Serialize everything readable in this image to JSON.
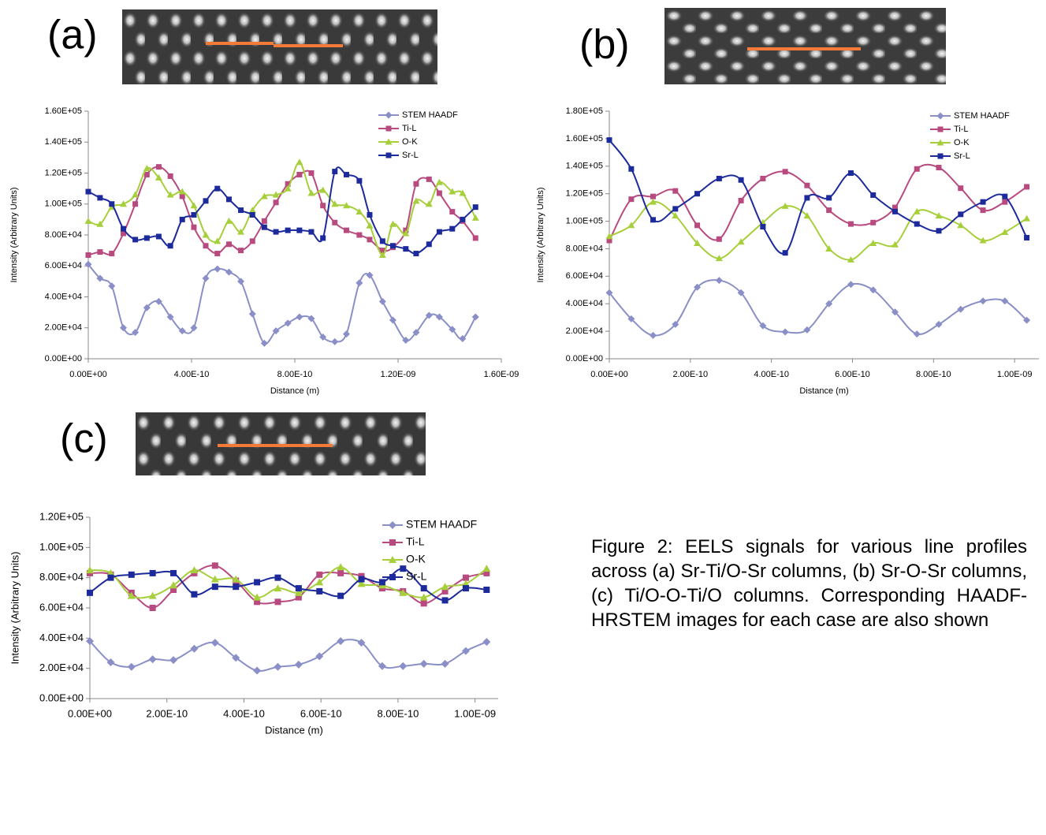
{
  "chart_data": [
    {
      "type": "line",
      "label": "(a)",
      "xlabel": "Distance (m)",
      "ylabel": "Intensity (Arbitrary Units)",
      "xlim": [
        0,
        1.6e-09
      ],
      "ylim": [
        0,
        160000
      ],
      "xticks": [
        {
          "value": 0,
          "label": "0.00E+00"
        },
        {
          "value": 4e-10,
          "label": "4.00E-10"
        },
        {
          "value": 8e-10,
          "label": "8.00E-10"
        },
        {
          "value": 1.2e-09,
          "label": "1.20E-09"
        },
        {
          "value": 1.6e-09,
          "label": "1.60E-09"
        }
      ],
      "yticks": [
        {
          "value": 0,
          "label": "0.00E+00"
        },
        {
          "value": 20000,
          "label": "2.00E+04"
        },
        {
          "value": 40000,
          "label": "4.00E+04"
        },
        {
          "value": 60000,
          "label": "6.00E+04"
        },
        {
          "value": 80000,
          "label": "8.00E+04"
        },
        {
          "value": 100000,
          "label": "1.00E+05"
        },
        {
          "value": 120000,
          "label": "1.20E+05"
        },
        {
          "value": 140000,
          "label": "1.40E+05"
        },
        {
          "value": 160000,
          "label": "1.60E+05"
        }
      ],
      "x": [
        0,
        4.55e-11,
        9.09e-11,
        1.36e-10,
        1.82e-10,
        2.27e-10,
        2.73e-10,
        3.18e-10,
        3.64e-10,
        4.09e-10,
        4.55e-10,
        5e-10,
        5.45e-10,
        5.91e-10,
        6.36e-10,
        6.82e-10,
        7.27e-10,
        7.73e-10,
        8.18e-10,
        8.64e-10,
        9.09e-10,
        9.55e-10,
        1e-09,
        1.05e-09,
        1.09e-09,
        1.14e-09,
        1.18e-09,
        1.23e-09,
        1.27e-09,
        1.32e-09,
        1.36e-09,
        1.41e-09,
        1.45e-09,
        1.5e-09
      ],
      "series": [
        {
          "name": "STEM HAADF",
          "color": "#8a8fc8",
          "marker": "diamond",
          "values": [
            61000,
            52000,
            47000,
            20000,
            17000,
            33000,
            37000,
            27000,
            18000,
            20000,
            52000,
            58000,
            56000,
            50000,
            29000,
            10000,
            18000,
            23000,
            27000,
            26000,
            14000,
            11000,
            16000,
            49000,
            54000,
            37000,
            25000,
            12000,
            17000,
            28000,
            27000,
            19000,
            13000,
            27000
          ]
        },
        {
          "name": "Ti-L",
          "color": "#b84a7f",
          "marker": "square",
          "values": [
            67000,
            69000,
            68000,
            81000,
            100000,
            119000,
            124000,
            118000,
            105000,
            85000,
            73000,
            68000,
            74000,
            70000,
            76000,
            89000,
            101000,
            113000,
            119000,
            120000,
            99000,
            88000,
            83000,
            80000,
            77000,
            70000,
            72000,
            83000,
            113000,
            116000,
            107000,
            95000,
            89000,
            78000
          ]
        },
        {
          "name": "O-K",
          "color": "#a6cf3b",
          "marker": "triangle",
          "values": [
            89000,
            87000,
            98000,
            100000,
            106000,
            123000,
            117000,
            106000,
            108000,
            99000,
            80000,
            76000,
            89000,
            82000,
            96000,
            105000,
            106000,
            110000,
            127000,
            107000,
            109000,
            100000,
            99000,
            95000,
            86000,
            67000,
            87000,
            81000,
            102000,
            100000,
            114000,
            108000,
            107000,
            91000
          ]
        },
        {
          "name": "Sr-L",
          "color": "#1c2a9c",
          "marker": "square",
          "values": [
            108000,
            104000,
            100000,
            84000,
            77000,
            78000,
            79000,
            73000,
            90000,
            93000,
            102000,
            110000,
            103000,
            96000,
            93000,
            85000,
            82000,
            83000,
            83000,
            82000,
            78000,
            121000,
            119000,
            115000,
            93000,
            76000,
            73000,
            71000,
            68000,
            74000,
            82000,
            84000,
            90000,
            98000
          ]
        }
      ]
    },
    {
      "type": "line",
      "label": "(b)",
      "xlabel": "Distance (m)",
      "ylabel": "Intensity (Arbitrary Units)",
      "xlim": [
        0,
        1.06e-09
      ],
      "ylim": [
        0,
        180000
      ],
      "xticks": [
        {
          "value": 0,
          "label": "0.00E+00"
        },
        {
          "value": 2e-10,
          "label": "2.00E-10"
        },
        {
          "value": 4e-10,
          "label": "4.00E-10"
        },
        {
          "value": 6e-10,
          "label": "6.00E-10"
        },
        {
          "value": 8e-10,
          "label": "8.00E-10"
        },
        {
          "value": 1e-09,
          "label": "1.00E-09"
        }
      ],
      "yticks": [
        {
          "value": 0,
          "label": "0.00E+00"
        },
        {
          "value": 20000,
          "label": "2.00E+04"
        },
        {
          "value": 40000,
          "label": "4.00E+04"
        },
        {
          "value": 60000,
          "label": "6.00E+04"
        },
        {
          "value": 80000,
          "label": "8.00E+04"
        },
        {
          "value": 100000,
          "label": "1.00E+05"
        },
        {
          "value": 120000,
          "label": "1.20E+05"
        },
        {
          "value": 140000,
          "label": "1.40E+05"
        },
        {
          "value": 160000,
          "label": "1.60E+05"
        },
        {
          "value": 180000,
          "label": "1.80E+05"
        }
      ],
      "x": [
        0,
        5.42e-11,
        1.08e-10,
        1.63e-10,
        2.17e-10,
        2.71e-10,
        3.25e-10,
        3.79e-10,
        4.34e-10,
        4.88e-10,
        5.42e-10,
        5.96e-10,
        6.51e-10,
        7.05e-10,
        7.59e-10,
        8.13e-10,
        8.67e-10,
        9.22e-10,
        9.76e-10,
        1.03e-09
      ],
      "series": [
        {
          "name": "STEM HAADF",
          "color": "#8a8fc8",
          "marker": "diamond",
          "values": [
            48000,
            29000,
            17000,
            25000,
            52000,
            57000,
            48000,
            24000,
            19500,
            21000,
            40000,
            54000,
            50000,
            34000,
            18000,
            25000,
            36000,
            42000,
            42000,
            28000
          ]
        },
        {
          "name": "Ti-L",
          "color": "#b84a7f",
          "marker": "square",
          "values": [
            86000,
            116000,
            118000,
            122000,
            97000,
            87000,
            115000,
            131000,
            136000,
            126000,
            108000,
            98000,
            99000,
            110000,
            138000,
            139000,
            124000,
            108000,
            114000,
            125000
          ]
        },
        {
          "name": "O-K",
          "color": "#a6cf3b",
          "marker": "triangle",
          "values": [
            89000,
            97000,
            114000,
            104000,
            84000,
            73000,
            85000,
            99000,
            111000,
            104000,
            80000,
            72000,
            84000,
            83000,
            107000,
            104000,
            97000,
            86000,
            92000,
            102000
          ]
        },
        {
          "name": "Sr-L",
          "color": "#1c2a9c",
          "marker": "square",
          "values": [
            159000,
            138000,
            101000,
            109000,
            120000,
            131000,
            130000,
            96000,
            77000,
            117000,
            117000,
            135000,
            119000,
            107000,
            98000,
            93000,
            105000,
            114000,
            118000,
            88000
          ]
        }
      ]
    },
    {
      "type": "line",
      "label": "(c)",
      "xlabel": "Distance (m)",
      "ylabel": "Intensity (Arbitrary Units)",
      "xlim": [
        0,
        1.06e-09
      ],
      "ylim": [
        0,
        120000
      ],
      "xticks": [
        {
          "value": 0,
          "label": "0.00E+00"
        },
        {
          "value": 2e-10,
          "label": "2.00E-10"
        },
        {
          "value": 4e-10,
          "label": "4.00E-10"
        },
        {
          "value": 6e-10,
          "label": "6.00E-10"
        },
        {
          "value": 8e-10,
          "label": "8.00E-10"
        },
        {
          "value": 1e-09,
          "label": "1.00E-09"
        }
      ],
      "yticks": [
        {
          "value": 0,
          "label": "0.00E+00"
        },
        {
          "value": 20000,
          "label": "2.00E+04"
        },
        {
          "value": 40000,
          "label": "4.00E+04"
        },
        {
          "value": 60000,
          "label": "6.00E+04"
        },
        {
          "value": 80000,
          "label": "8.00E+04"
        },
        {
          "value": 100000,
          "label": "1.00E+05"
        },
        {
          "value": 120000,
          "label": "1.20E+05"
        }
      ],
      "x": [
        0,
        5.42e-11,
        1.08e-10,
        1.63e-10,
        2.17e-10,
        2.71e-10,
        3.25e-10,
        3.79e-10,
        4.34e-10,
        4.88e-10,
        5.42e-10,
        5.96e-10,
        6.51e-10,
        7.05e-10,
        7.59e-10,
        8.13e-10,
        8.67e-10,
        9.22e-10,
        9.76e-10,
        1.03e-09
      ],
      "series": [
        {
          "name": "STEM HAADF",
          "color": "#8a8fc8",
          "marker": "diamond",
          "values": [
            38000,
            24000,
            21000,
            26000,
            25500,
            33000,
            37000,
            27000,
            18500,
            21000,
            22500,
            28000,
            38000,
            37000,
            21500,
            21500,
            23000,
            23000,
            31500,
            37500
          ]
        },
        {
          "name": "Ti-L",
          "color": "#b84a7f",
          "marker": "square",
          "values": [
            83000,
            82000,
            70000,
            60000,
            72000,
            83000,
            88000,
            78000,
            64000,
            64000,
            67000,
            82000,
            83000,
            81000,
            73000,
            71000,
            63000,
            71000,
            80000,
            83000
          ]
        },
        {
          "name": "O-K",
          "color": "#a6cf3b",
          "marker": "triangle",
          "values": [
            85000,
            83000,
            68000,
            68000,
            75000,
            85000,
            79000,
            79000,
            67000,
            73000,
            70000,
            77000,
            87000,
            76000,
            75000,
            70000,
            67000,
            74000,
            76000,
            86000
          ]
        },
        {
          "name": "Sr-L",
          "color": "#1c2a9c",
          "marker": "square",
          "values": [
            70000,
            80000,
            82000,
            83000,
            83000,
            69000,
            74000,
            74000,
            77000,
            80000,
            73000,
            71000,
            68000,
            79000,
            77000,
            86000,
            73000,
            65000,
            73000,
            72000
          ]
        }
      ]
    }
  ],
  "caption": "Figure 2: EELS signals for various line profiles across (a) Sr-Ti/O-Sr columns, (b) Sr-O-Sr columns, (c) Ti/O-O-Ti/O columns. Corresponding HAADF-HRSTEM images for each case are also shown"
}
